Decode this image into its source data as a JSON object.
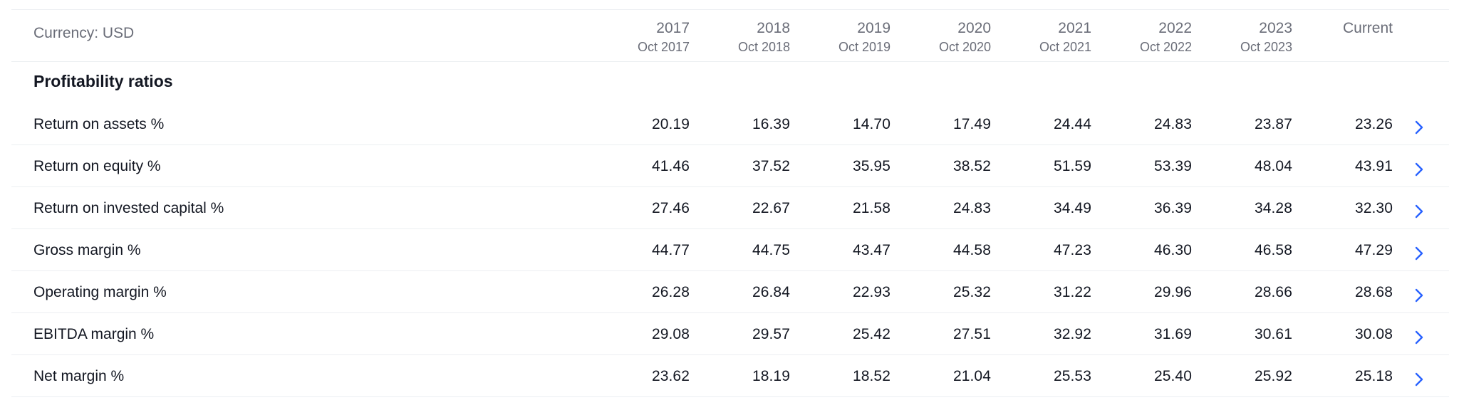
{
  "currency_label": "Currency: USD",
  "columns": [
    {
      "year": "2017",
      "period": "Oct 2017"
    },
    {
      "year": "2018",
      "period": "Oct 2018"
    },
    {
      "year": "2019",
      "period": "Oct 2019"
    },
    {
      "year": "2020",
      "period": "Oct 2020"
    },
    {
      "year": "2021",
      "period": "Oct 2021"
    },
    {
      "year": "2022",
      "period": "Oct 2022"
    },
    {
      "year": "2023",
      "period": "Oct 2023"
    },
    {
      "year": "Current",
      "period": ""
    }
  ],
  "section_title": "Profitability ratios",
  "rows": [
    {
      "label": "Return on assets %",
      "values": [
        "20.19",
        "16.39",
        "14.70",
        "17.49",
        "24.44",
        "24.83",
        "23.87",
        "23.26"
      ]
    },
    {
      "label": "Return on equity %",
      "values": [
        "41.46",
        "37.52",
        "35.95",
        "38.52",
        "51.59",
        "53.39",
        "48.04",
        "43.91"
      ]
    },
    {
      "label": "Return on invested capital %",
      "values": [
        "27.46",
        "22.67",
        "21.58",
        "24.83",
        "34.49",
        "36.39",
        "34.28",
        "32.30"
      ]
    },
    {
      "label": "Gross margin %",
      "values": [
        "44.77",
        "44.75",
        "43.47",
        "44.58",
        "47.23",
        "46.30",
        "46.58",
        "47.29"
      ]
    },
    {
      "label": "Operating margin %",
      "values": [
        "26.28",
        "26.84",
        "22.93",
        "25.32",
        "31.22",
        "29.96",
        "28.66",
        "28.68"
      ]
    },
    {
      "label": "EBITDA margin %",
      "values": [
        "29.08",
        "29.57",
        "25.42",
        "27.51",
        "32.92",
        "31.69",
        "30.61",
        "30.08"
      ]
    },
    {
      "label": "Net margin %",
      "values": [
        "23.62",
        "18.19",
        "18.52",
        "21.04",
        "25.53",
        "25.40",
        "25.92",
        "25.18"
      ]
    }
  ],
  "icons": {
    "row_action": "chevron-right-icon"
  },
  "colors": {
    "accent": "#2962ff",
    "muted_text": "#6a6d78",
    "text": "#131722",
    "divider": "#eceff2"
  }
}
